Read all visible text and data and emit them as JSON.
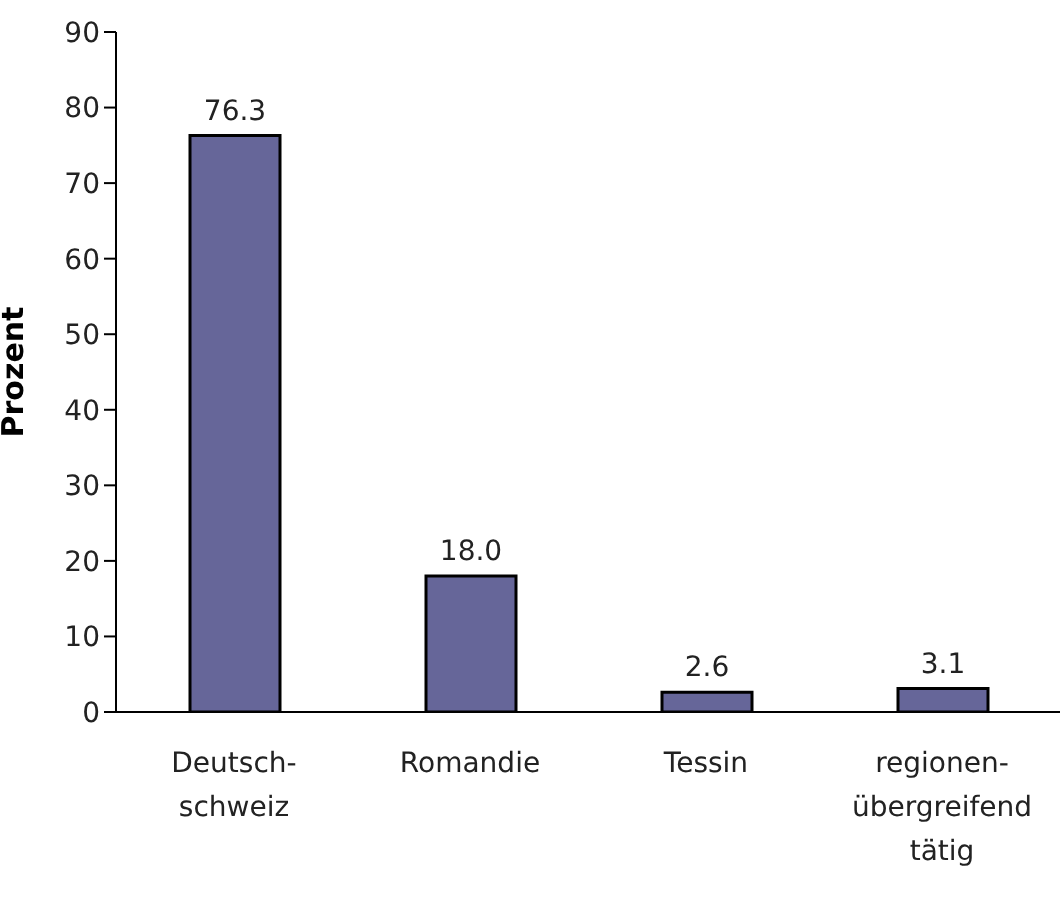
{
  "chart_data": {
    "type": "bar",
    "ylabel": "Prozent",
    "categories": [
      "Deutsch-\nschweiz",
      "Romandie",
      "Tessin",
      "regionen-\nübergreifend\ntätig"
    ],
    "values": [
      76.3,
      18.0,
      2.6,
      3.1
    ],
    "value_labels": [
      "76.3",
      "18.0",
      "2.6",
      "3.1"
    ],
    "color": "#666699",
    "ylim": [
      0,
      90
    ],
    "yticks": [
      0,
      10,
      20,
      30,
      40,
      50,
      60,
      70,
      80,
      90
    ],
    "grid": false
  }
}
